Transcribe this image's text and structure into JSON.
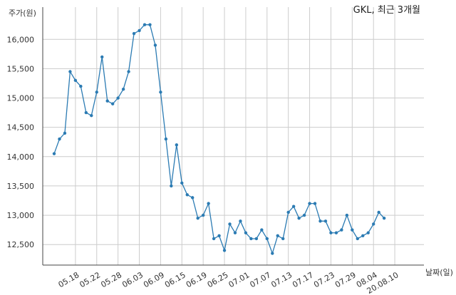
{
  "chart_data": {
    "type": "line",
    "title": "GKL, 최근 3개월",
    "ylabel": "주가(원)",
    "xlabel": "날짜(일)",
    "ylim": [
      12150,
      16550
    ],
    "yticks": [
      12500,
      13000,
      13500,
      14000,
      14500,
      15000,
      15500,
      16000
    ],
    "ytick_labels": [
      "12,500",
      "13,000",
      "13,500",
      "14,000",
      "14,500",
      "15,000",
      "15,500",
      "16,000"
    ],
    "xticks": [
      {
        "index": 4,
        "label": "05.18"
      },
      {
        "index": 8,
        "label": "05.22"
      },
      {
        "index": 12,
        "label": "05.28"
      },
      {
        "index": 16,
        "label": "06.03"
      },
      {
        "index": 20,
        "label": "06.09"
      },
      {
        "index": 24,
        "label": "06.15"
      },
      {
        "index": 28,
        "label": "06.19"
      },
      {
        "index": 32,
        "label": "06.25"
      },
      {
        "index": 36,
        "label": "07.01"
      },
      {
        "index": 40,
        "label": "07.07"
      },
      {
        "index": 44,
        "label": "07.13"
      },
      {
        "index": 48,
        "label": "07.17"
      },
      {
        "index": 52,
        "label": "07.23"
      },
      {
        "index": 56,
        "label": "07.29"
      },
      {
        "index": 60,
        "label": "08.04"
      },
      {
        "index": 64,
        "label": "20.08.10"
      }
    ],
    "grid": true,
    "color": "#2b7bb3",
    "series": [
      {
        "values": [
          14050,
          14300,
          14400,
          15450,
          15300,
          15200,
          14750,
          14700,
          15100,
          15700,
          14950,
          14900,
          15000,
          15150,
          15450,
          16100,
          16150,
          16250,
          16250,
          15900,
          15100,
          14300,
          13500,
          14200,
          13550,
          13350,
          13300,
          12950,
          13000,
          13200,
          12600,
          12650,
          12400,
          12850,
          12700,
          12900,
          12700,
          12600,
          12600,
          12750,
          12600,
          12350,
          12650,
          12600,
          13050,
          13150,
          12950,
          13000,
          13200,
          13200,
          12900,
          12900,
          12700,
          12700,
          12750,
          13000,
          12750,
          12600,
          12650,
          12700,
          12850,
          13050,
          12950
        ]
      }
    ]
  }
}
